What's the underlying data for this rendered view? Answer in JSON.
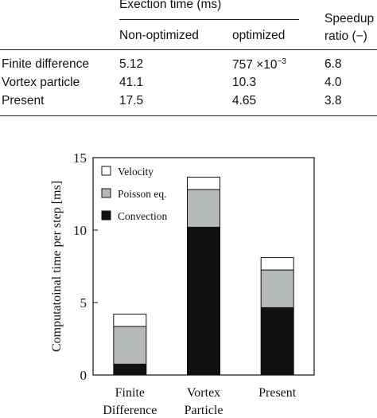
{
  "table": {
    "group_header": "Exection time (ms)",
    "speedup_header_line1": "Speedup",
    "speedup_header_line2": "ratio (−)",
    "col_nonopt": "Non-optimized",
    "col_opt": "optimized",
    "rows": [
      {
        "method": "Finite difference",
        "nonopt": "5.12",
        "opt_mantissa": "757",
        "opt_times": "×10",
        "opt_exp": "−3",
        "speedup": "6.8"
      },
      {
        "method": "Vortex particle",
        "nonopt": "41.1",
        "opt": "10.3",
        "speedup": "4.0"
      },
      {
        "method": "Present",
        "nonopt": "17.5",
        "opt": "4.65",
        "speedup": "3.8"
      }
    ]
  },
  "chart_data": {
    "type": "bar",
    "stacked": true,
    "categories": [
      [
        "Finite",
        "Difference"
      ],
      [
        "Vortex",
        "Particle"
      ],
      [
        "Present"
      ]
    ],
    "series": [
      {
        "name": "Convection",
        "color": "#111111",
        "values": [
          0.75,
          10.2,
          4.65
        ]
      },
      {
        "name": "Poisson eq.",
        "color": "#b5bab7",
        "values": [
          2.6,
          2.6,
          2.6
        ]
      },
      {
        "name": "Velocity",
        "color": "#ffffff",
        "values": [
          0.85,
          0.85,
          0.85
        ]
      }
    ],
    "legend_order": [
      "Velocity",
      "Poisson eq.",
      "Convection"
    ],
    "legend_position": "top-left",
    "ylabel": "Computatoinal time per step [ms]",
    "ylim": [
      0,
      15
    ],
    "yticks": [
      0,
      5,
      10,
      15
    ],
    "grid": false
  }
}
